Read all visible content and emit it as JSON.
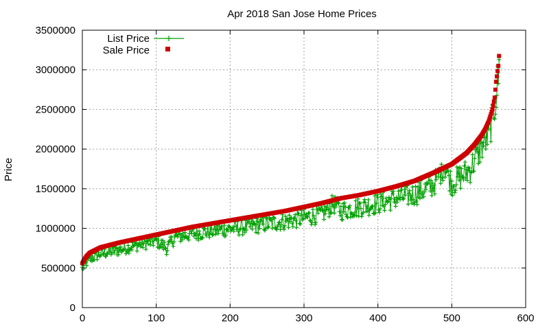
{
  "chart_data": {
    "type": "scatter",
    "title": "Apr 2018 San Jose Home Prices",
    "xlabel": "",
    "ylabel": "Price",
    "xlim": [
      0,
      600
    ],
    "ylim": [
      0,
      3500000
    ],
    "x_ticks": [
      0,
      100,
      200,
      300,
      400,
      500,
      600
    ],
    "y_ticks": [
      0,
      500000,
      1000000,
      1500000,
      2000000,
      2500000,
      3000000,
      3500000
    ],
    "grid": true,
    "legend_position": "top-left",
    "n_points": 565,
    "series": [
      {
        "name": "List Price",
        "marker": "plus",
        "line": true,
        "color": "#00a000",
        "description": "list prices, same x order as sale prices; mostly below sale price with large scatter",
        "x": [
          0,
          10,
          25,
          50,
          75,
          100,
          115,
          125,
          150,
          175,
          200,
          225,
          250,
          275,
          300,
          325,
          340,
          350,
          375,
          400,
          425,
          450,
          475,
          490,
          500,
          525,
          540,
          550,
          560,
          565
        ],
        "values": [
          480000,
          600000,
          680000,
          720000,
          800000,
          860000,
          640000,
          900000,
          950000,
          980000,
          1000000,
          1020000,
          1050000,
          1080000,
          1120000,
          1180000,
          1400000,
          1200000,
          1260000,
          1300000,
          1380000,
          1420000,
          1560000,
          2000000,
          1500000,
          1700000,
          2100000,
          2250000,
          2800000,
          3250000
        ]
      },
      {
        "name": "Sale Price",
        "marker": "square",
        "line": false,
        "color": "#cc0000",
        "description": "sale prices sorted ascending",
        "x": [
          0,
          5,
          10,
          25,
          50,
          75,
          100,
          125,
          150,
          175,
          200,
          225,
          250,
          275,
          300,
          325,
          350,
          375,
          400,
          425,
          450,
          475,
          500,
          510,
          520,
          530,
          540,
          545,
          550,
          555,
          558,
          560,
          563,
          565
        ],
        "values": [
          560000,
          640000,
          690000,
          760000,
          820000,
          870000,
          920000,
          970000,
          1020000,
          1060000,
          1100000,
          1140000,
          1180000,
          1220000,
          1270000,
          1320000,
          1380000,
          1420000,
          1470000,
          1530000,
          1600000,
          1700000,
          1810000,
          1880000,
          1950000,
          2050000,
          2170000,
          2250000,
          2350000,
          2500000,
          2650000,
          2850000,
          3050000,
          3300000
        ]
      }
    ]
  }
}
